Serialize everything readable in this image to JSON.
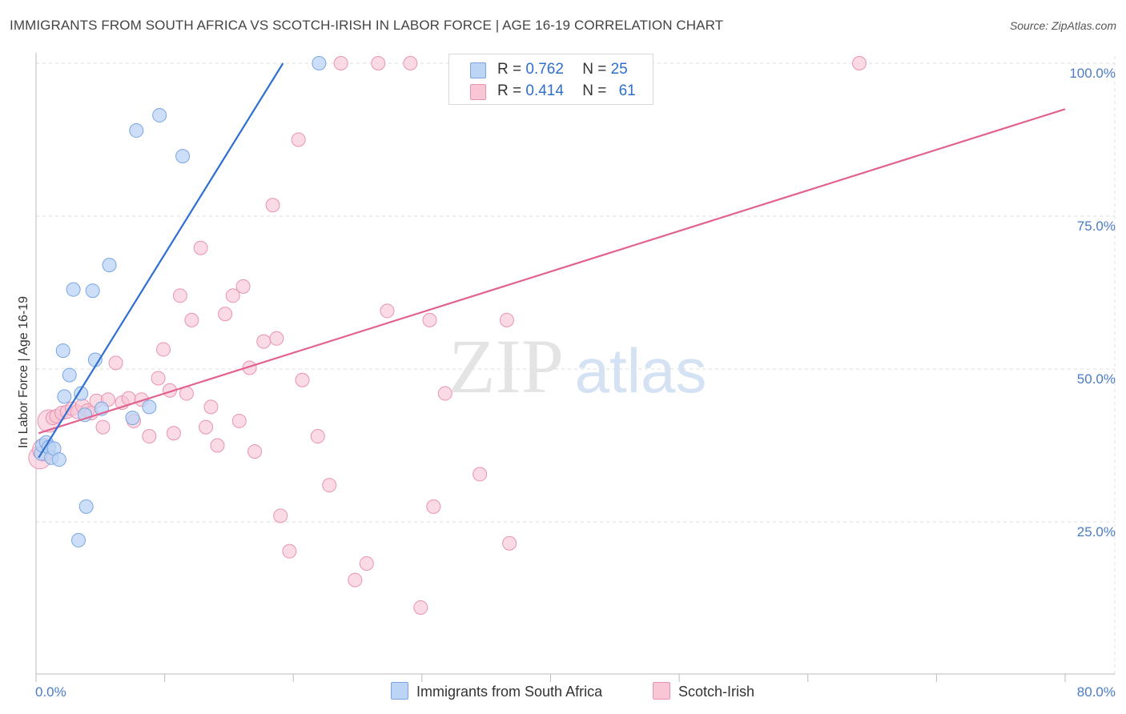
{
  "title": "IMMIGRANTS FROM SOUTH AFRICA VS SCOTCH-IRISH IN LABOR FORCE | AGE 16-19 CORRELATION CHART",
  "source": "Source: ZipAtlas.com",
  "watermark": {
    "zip": "ZIP",
    "atlas": "atlas"
  },
  "colors": {
    "blue": "#2e6fd0",
    "blue_fill": "#bcd4f5",
    "pink": "#e2628f",
    "pink_fill": "#f8c6d5",
    "tick": "#4a7cc4"
  },
  "legend": {
    "rows": [
      {
        "r_label": "R = ",
        "r_value": "0.762",
        "n_label": "N = ",
        "n_value": "25"
      },
      {
        "r_label": "R = ",
        "r_value": "0.414",
        "n_label": "N = ",
        "n_value": "61"
      }
    ]
  },
  "bottom_legend": [
    "Immigrants from South Africa",
    "Scotch-Irish"
  ],
  "chart_data": {
    "type": "scatter",
    "xlabel": "",
    "ylabel": "In Labor Force | Age 16-19",
    "xlim": [
      0,
      80
    ],
    "ylim": [
      0,
      105
    ],
    "x_tick_labels": [
      "0.0%",
      "80.0%"
    ],
    "y_ticks": [
      25,
      50,
      75,
      100
    ],
    "y_tick_labels": [
      "25.0%",
      "50.0%",
      "75.0%",
      "100.0%"
    ],
    "grid": true,
    "series": [
      {
        "name": "Immigrants from South Africa",
        "R": 0.762,
        "N": 25,
        "points": [
          [
            0.4,
            36.2
          ],
          [
            0.5,
            37.5
          ],
          [
            0.8,
            38.0
          ],
          [
            1.0,
            37.2
          ],
          [
            1.2,
            35.5
          ],
          [
            1.4,
            37.0
          ],
          [
            1.8,
            35.2
          ],
          [
            2.1,
            53.0
          ],
          [
            2.2,
            45.5
          ],
          [
            2.6,
            49.0
          ],
          [
            2.9,
            63.0
          ],
          [
            3.5,
            46.0
          ],
          [
            3.8,
            42.5
          ],
          [
            3.9,
            27.5
          ],
          [
            3.3,
            22.0
          ],
          [
            4.4,
            62.8
          ],
          [
            4.6,
            51.5
          ],
          [
            5.1,
            43.5
          ],
          [
            5.7,
            67.0
          ],
          [
            7.5,
            42.0
          ],
          [
            7.8,
            89.0
          ],
          [
            8.8,
            43.8
          ],
          [
            9.6,
            91.5
          ],
          [
            11.4,
            84.8
          ],
          [
            22.0,
            100.0
          ]
        ],
        "trend": {
          "x": [
            0.2,
            19.2
          ],
          "y": [
            35.5,
            100.0
          ]
        }
      },
      {
        "name": "Scotch-Irish",
        "R": 0.414,
        "N": 61,
        "points": [
          [
            0.3,
            35.5
          ],
          [
            0.6,
            36.8
          ],
          [
            1.0,
            41.5
          ],
          [
            1.3,
            42.0
          ],
          [
            1.6,
            42.3
          ],
          [
            2.0,
            42.8
          ],
          [
            2.4,
            43.0
          ],
          [
            2.8,
            43.5
          ],
          [
            3.2,
            43.0
          ],
          [
            3.6,
            44.0
          ],
          [
            4.0,
            43.2
          ],
          [
            4.3,
            42.8
          ],
          [
            4.7,
            44.8
          ],
          [
            5.2,
            40.5
          ],
          [
            5.6,
            45.0
          ],
          [
            6.2,
            51.0
          ],
          [
            6.7,
            44.5
          ],
          [
            7.2,
            45.2
          ],
          [
            7.6,
            41.5
          ],
          [
            8.2,
            45.0
          ],
          [
            8.8,
            39.0
          ],
          [
            9.5,
            48.5
          ],
          [
            9.9,
            53.2
          ],
          [
            10.4,
            46.5
          ],
          [
            10.7,
            39.5
          ],
          [
            11.2,
            62.0
          ],
          [
            11.7,
            46.0
          ],
          [
            12.1,
            58.0
          ],
          [
            12.8,
            69.8
          ],
          [
            13.2,
            40.5
          ],
          [
            13.6,
            43.8
          ],
          [
            14.1,
            37.5
          ],
          [
            14.7,
            59.0
          ],
          [
            15.3,
            62.0
          ],
          [
            15.8,
            41.5
          ],
          [
            16.1,
            63.5
          ],
          [
            16.6,
            50.2
          ],
          [
            17.0,
            36.5
          ],
          [
            17.7,
            54.5
          ],
          [
            18.4,
            76.8
          ],
          [
            18.7,
            55.0
          ],
          [
            19.0,
            26.0
          ],
          [
            19.7,
            20.2
          ],
          [
            20.4,
            87.5
          ],
          [
            20.7,
            48.2
          ],
          [
            21.9,
            39.0
          ],
          [
            22.8,
            31.0
          ],
          [
            23.7,
            100.0
          ],
          [
            24.8,
            15.5
          ],
          [
            25.7,
            18.2
          ],
          [
            26.6,
            100.0
          ],
          [
            27.3,
            59.5
          ],
          [
            29.1,
            100.0
          ],
          [
            29.9,
            11.0
          ],
          [
            30.6,
            58.0
          ],
          [
            30.9,
            27.5
          ],
          [
            31.8,
            46.0
          ],
          [
            34.5,
            32.8
          ],
          [
            36.6,
            58.0
          ],
          [
            36.8,
            21.5
          ],
          [
            64.0,
            100.0
          ]
        ],
        "trend": {
          "x": [
            0.2,
            80.0
          ],
          "y": [
            39.5,
            92.5
          ]
        }
      }
    ]
  }
}
